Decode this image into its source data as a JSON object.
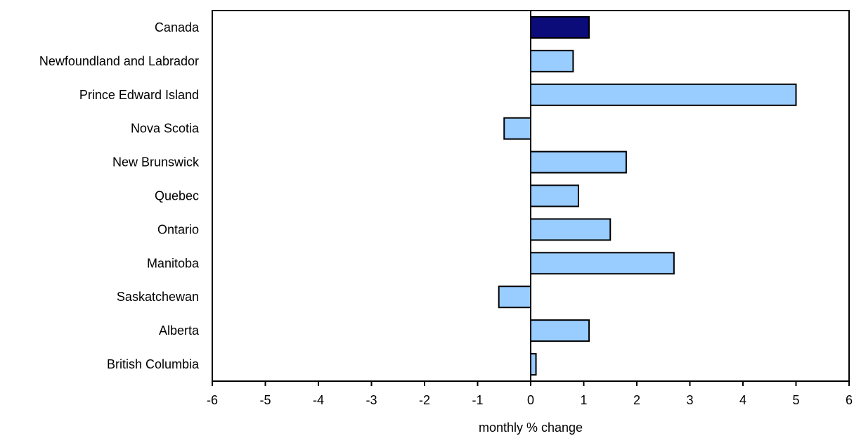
{
  "chart_data": {
    "type": "bar",
    "orientation": "horizontal",
    "categories": [
      "Canada",
      "Newfoundland and Labrador",
      "Prince Edward Island",
      "Nova Scotia",
      "New  Brunswick",
      "Quebec",
      "Ontario",
      "Manitoba",
      "Saskatchewan",
      "Alberta",
      "British Columbia"
    ],
    "values": [
      1.1,
      0.8,
      5.0,
      -0.5,
      1.8,
      0.9,
      1.5,
      2.7,
      -0.6,
      1.1,
      0.1
    ],
    "highlight_category": "Canada",
    "xlabel": "monthly % change",
    "xlim": [
      -6,
      6
    ],
    "xticks": [
      -6,
      -5,
      -4,
      -3,
      -2,
      -1,
      0,
      1,
      2,
      3,
      4,
      5,
      6
    ],
    "grid": false,
    "legend": "none",
    "colors": {
      "highlight": "#0b0b7a",
      "bar": "#99ccff",
      "outline": "#000000"
    }
  }
}
